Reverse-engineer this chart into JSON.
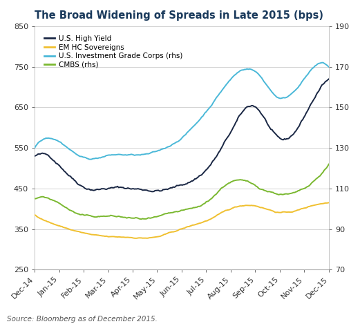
{
  "title": "The Broad Widening of Spreads in Late 2015 (bps)",
  "source": "Source: Bloomberg as of December 2015.",
  "x_labels": [
    "Dec-14",
    "Jan-15",
    "Feb-15",
    "Mar-15",
    "Apr-15",
    "May-15",
    "Jun-15",
    "Jul-15",
    "Aug-15",
    "Sep-15",
    "Oct-15",
    "Nov-15",
    "Dec-15"
  ],
  "ylim_left": [
    250,
    850
  ],
  "ylim_right": [
    70,
    190
  ],
  "yticks_left": [
    250,
    350,
    450,
    550,
    650,
    750,
    850
  ],
  "yticks_right": [
    70,
    90,
    110,
    130,
    150,
    170,
    190
  ],
  "colors": {
    "hy": "#1a2744",
    "em": "#f0c030",
    "ig": "#4ab8d8",
    "cmbs": "#7ab830"
  },
  "legend": [
    "U.S. High Yield",
    "EM HC Sovereigns",
    "U.S. Investment Grade Corps (rhs)",
    "CMBS (rhs)"
  ],
  "months": [
    0,
    1,
    2,
    3,
    4,
    5,
    6,
    7,
    8,
    9,
    10,
    11,
    12
  ],
  "us_hy_pts": [
    530,
    510,
    463,
    462,
    460,
    458,
    470,
    510,
    600,
    660,
    575,
    630,
    720
  ],
  "em_hc_pts": [
    385,
    360,
    342,
    330,
    328,
    330,
    348,
    368,
    395,
    405,
    390,
    400,
    415
  ],
  "ig_pts": [
    130,
    134,
    126,
    127,
    127,
    128,
    135,
    148,
    164,
    168,
    155,
    165,
    170
  ],
  "cmbs_pts": [
    105,
    103,
    97,
    97,
    96,
    96,
    98,
    102,
    113,
    111,
    108,
    110,
    122
  ],
  "noise_seed": 42,
  "n_points": 260
}
